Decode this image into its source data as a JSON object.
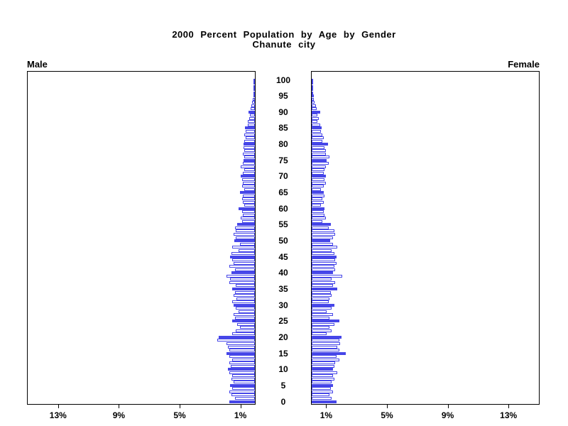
{
  "title": {
    "line1": "2000 Percent Population by Age by Gender",
    "line2": "Chanute city"
  },
  "axis_labels": {
    "left": "Male",
    "right": "Female"
  },
  "colors": {
    "bar_blue": "#4646e8",
    "axis": "#000000",
    "background": "#ffffff"
  },
  "chart_data": {
    "type": "bar",
    "subtype": "population-pyramid",
    "title": "2000 Percent Population by Age by Gender",
    "subtitle": "Chanute city",
    "age_axis": {
      "min": 0,
      "max": 100,
      "tick_step": 5,
      "tick_labels": [
        "0",
        "5",
        "10",
        "15",
        "20",
        "25",
        "30",
        "35",
        "40",
        "45",
        "50",
        "55",
        "60",
        "65",
        "70",
        "75",
        "80",
        "85",
        "90",
        "95",
        "100"
      ]
    },
    "pct_axis": {
      "xlim": [
        0,
        15
      ],
      "left_tick_labels": [
        "13%",
        "9%",
        "5%",
        "1%"
      ],
      "left_tick_values": [
        13,
        9,
        5,
        1
      ],
      "right_tick_labels": [
        "1%",
        "5%",
        "9%",
        "13%"
      ],
      "right_tick_values": [
        1,
        5,
        9,
        13
      ]
    },
    "highlight_rule": "bars at ages divisible by 5 are solid blue; other ages are white with blue outline",
    "series": [
      {
        "name": "Male",
        "side": "left",
        "values": [
          1.7,
          1.3,
          1.55,
          1.7,
          1.5,
          1.65,
          1.4,
          1.55,
          1.5,
          1.7,
          1.8,
          1.6,
          1.7,
          1.5,
          1.7,
          1.85,
          1.7,
          1.8,
          1.85,
          2.5,
          2.4,
          1.5,
          1.25,
          1.0,
          1.15,
          1.5,
          1.3,
          1.4,
          1.1,
          1.25,
          1.4,
          1.5,
          1.2,
          1.4,
          1.3,
          1.5,
          1.25,
          1.7,
          1.65,
          1.85,
          1.55,
          1.3,
          1.7,
          1.4,
          1.5,
          1.65,
          1.55,
          1.1,
          1.5,
          1.0,
          1.35,
          1.25,
          1.4,
          1.25,
          1.3,
          1.15,
          0.85,
          0.95,
          0.8,
          0.85,
          1.1,
          0.7,
          0.8,
          0.85,
          0.8,
          1.0,
          0.7,
          0.85,
          0.8,
          0.85,
          0.95,
          0.8,
          0.7,
          0.95,
          0.8,
          0.75,
          0.7,
          0.8,
          0.7,
          0.75,
          0.75,
          0.7,
          0.62,
          0.7,
          0.62,
          0.65,
          0.47,
          0.47,
          0.39,
          0.31,
          0.42,
          0.28,
          0.23,
          0.19,
          0.12,
          0.08,
          0.05,
          0.05,
          0.03,
          0.02,
          0.02
        ]
      },
      {
        "name": "Female",
        "side": "right",
        "values": [
          1.63,
          1.3,
          1.15,
          1.4,
          1.25,
          1.4,
          1.3,
          1.5,
          1.4,
          1.7,
          1.4,
          1.5,
          1.55,
          1.8,
          1.65,
          2.25,
          1.8,
          1.7,
          1.85,
          1.8,
          1.95,
          1.0,
          1.3,
          1.15,
          1.5,
          1.8,
          1.15,
          1.4,
          1.0,
          1.3,
          1.5,
          1.1,
          1.15,
          1.3,
          1.25,
          1.7,
          1.4,
          1.55,
          1.3,
          2.0,
          1.4,
          1.55,
          1.5,
          1.65,
          1.55,
          1.65,
          1.5,
          1.3,
          1.7,
          1.4,
          1.2,
          1.4,
          1.55,
          1.5,
          1.1,
          1.25,
          0.7,
          0.95,
          0.85,
          0.8,
          0.85,
          0.62,
          0.78,
          0.7,
          0.85,
          0.78,
          0.62,
          0.78,
          0.93,
          0.85,
          0.93,
          0.78,
          0.85,
          0.93,
          1.1,
          1.0,
          1.17,
          0.93,
          0.95,
          0.85,
          1.06,
          0.7,
          0.78,
          0.7,
          0.62,
          0.65,
          0.55,
          0.39,
          0.47,
          0.39,
          0.55,
          0.31,
          0.28,
          0.19,
          0.16,
          0.12,
          0.06,
          0.05,
          0.03,
          0.02,
          0.02
        ]
      }
    ]
  }
}
